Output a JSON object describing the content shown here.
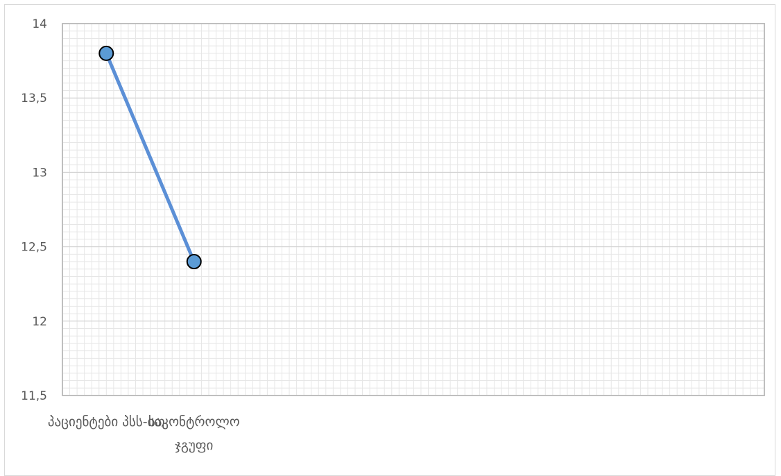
{
  "chart_data": {
    "type": "line",
    "categories": [
      "პაციენტები პსს-ით",
      "საკონტროლო ჯგუფი"
    ],
    "category_lines": [
      [
        "პაციენტები პსს-ით"
      ],
      [
        "საკონტროლო",
        "ჯგუფი"
      ]
    ],
    "series": [
      {
        "values": [
          13.8,
          12.4
        ],
        "color": "#5b8fd6",
        "marker_fill": "#5b9bd5",
        "marker_stroke": "#000000"
      }
    ],
    "ylim": [
      11.5,
      14
    ],
    "yticks": [
      11.5,
      12,
      12.5,
      13,
      13.5,
      14
    ],
    "ytick_labels": [
      "11,5",
      "12",
      "12,5",
      "13",
      "13,5",
      "14"
    ],
    "category_slots": 8,
    "grid": true,
    "legend": "none",
    "title": "",
    "xlabel": "",
    "ylabel": ""
  }
}
